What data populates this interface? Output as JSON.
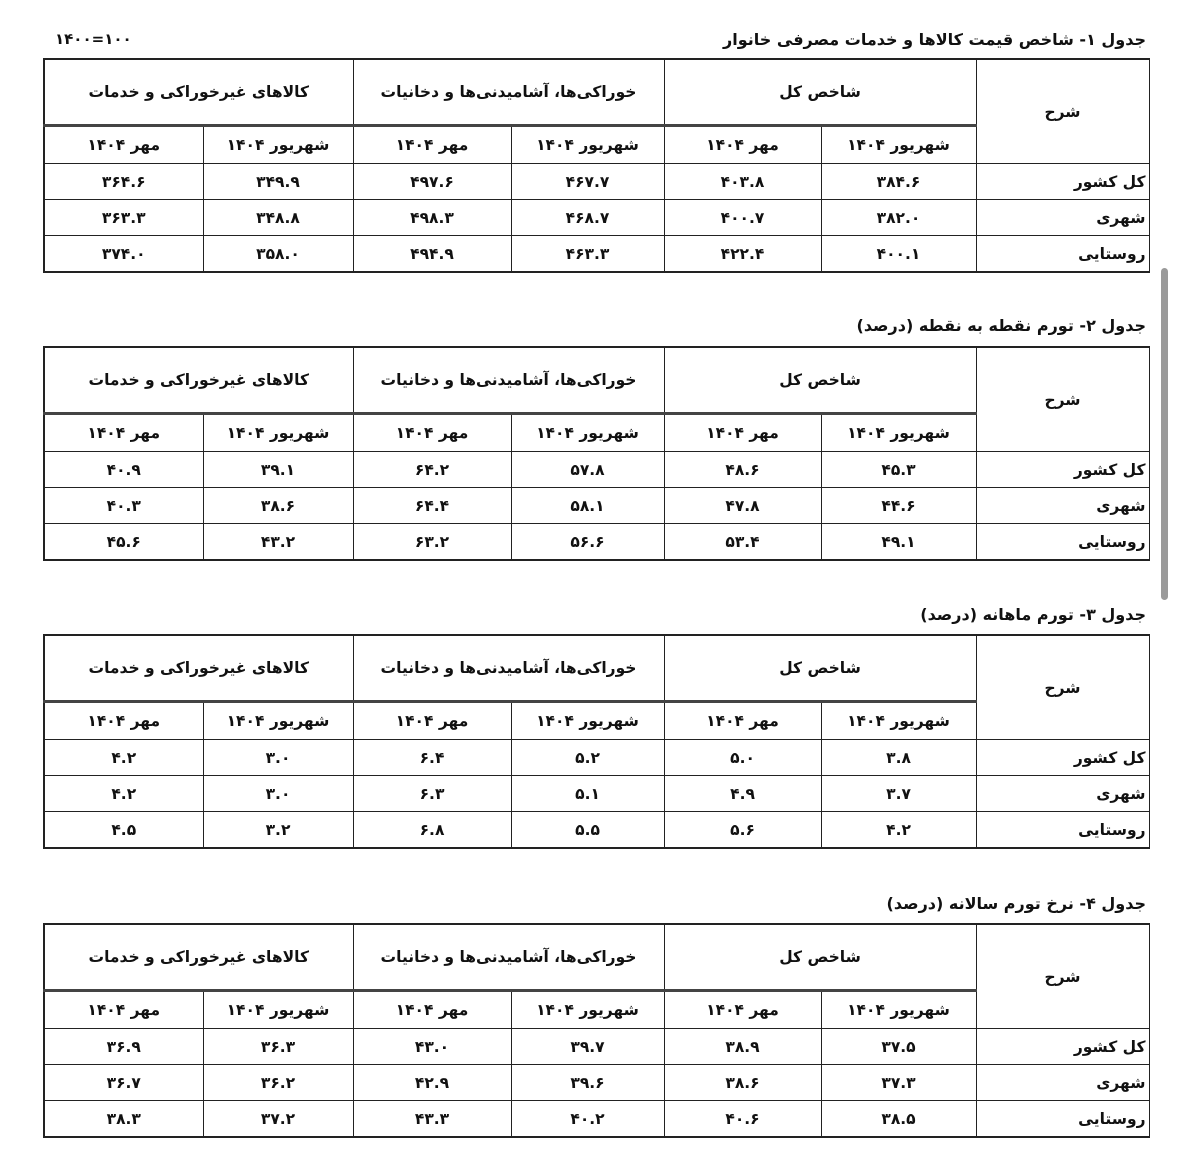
{
  "base_note": "۱۴۰۰=۱۰۰",
  "column_groups": [
    "شاخص کل",
    "خوراکی‌ها، آشامیدنی‌ها و دخانیات",
    "کالاهای غیرخوراکی و خدمات"
  ],
  "sub_columns": [
    "شهریور ۱۴۰۴",
    "مهر ۱۴۰۴"
  ],
  "row_header": "شرح",
  "row_labels": [
    "کل کشور",
    "شهری",
    "روستایی"
  ],
  "tables": [
    {
      "title": "جدول ۱-  شاخص قیمت کالاها و خدمات مصرفی خانوار",
      "rows": [
        [
          "۳۸۴.۶",
          "۴۰۳.۸",
          "۴۶۷.۷",
          "۴۹۷.۶",
          "۳۴۹.۹",
          "۳۶۴.۶"
        ],
        [
          "۳۸۲.۰",
          "۴۰۰.۷",
          "۴۶۸.۷",
          "۴۹۸.۳",
          "۳۴۸.۸",
          "۳۶۳.۳"
        ],
        [
          "۴۰۰.۱",
          "۴۲۲.۴",
          "۴۶۳.۳",
          "۴۹۴.۹",
          "۳۵۸.۰",
          "۳۷۴.۰"
        ]
      ]
    },
    {
      "title": "جدول ۲-  تورم نقطه به نقطه (درصد)",
      "rows": [
        [
          "۴۵.۳",
          "۴۸.۶",
          "۵۷.۸",
          "۶۴.۲",
          "۳۹.۱",
          "۴۰.۹"
        ],
        [
          "۴۴.۶",
          "۴۷.۸",
          "۵۸.۱",
          "۶۴.۴",
          "۳۸.۶",
          "۴۰.۳"
        ],
        [
          "۴۹.۱",
          "۵۳.۴",
          "۵۶.۶",
          "۶۳.۲",
          "۴۳.۲",
          "۴۵.۶"
        ]
      ]
    },
    {
      "title": "جدول ۳-  تورم ماهانه (درصد)",
      "rows": [
        [
          "۳.۸",
          "۵.۰",
          "۵.۲",
          "۶.۴",
          "۳.۰",
          "۴.۲"
        ],
        [
          "۳.۷",
          "۴.۹",
          "۵.۱",
          "۶.۳",
          "۳.۰",
          "۴.۲"
        ],
        [
          "۴.۲",
          "۵.۶",
          "۵.۵",
          "۶.۸",
          "۳.۲",
          "۴.۵"
        ]
      ]
    },
    {
      "title": "جدول ۴-  نرخ تورم سالانه (درصد)",
      "rows": [
        [
          "۳۷.۵",
          "۳۸.۹",
          "۳۹.۷",
          "۴۳.۰",
          "۳۶.۳",
          "۳۶.۹"
        ],
        [
          "۳۷.۳",
          "۳۸.۶",
          "۳۹.۶",
          "۴۲.۹",
          "۳۶.۲",
          "۳۶.۷"
        ],
        [
          "۳۸.۵",
          "۴۰.۶",
          "۴۰.۲",
          "۴۳.۳",
          "۳۷.۲",
          "۳۸.۳"
        ]
      ]
    }
  ]
}
